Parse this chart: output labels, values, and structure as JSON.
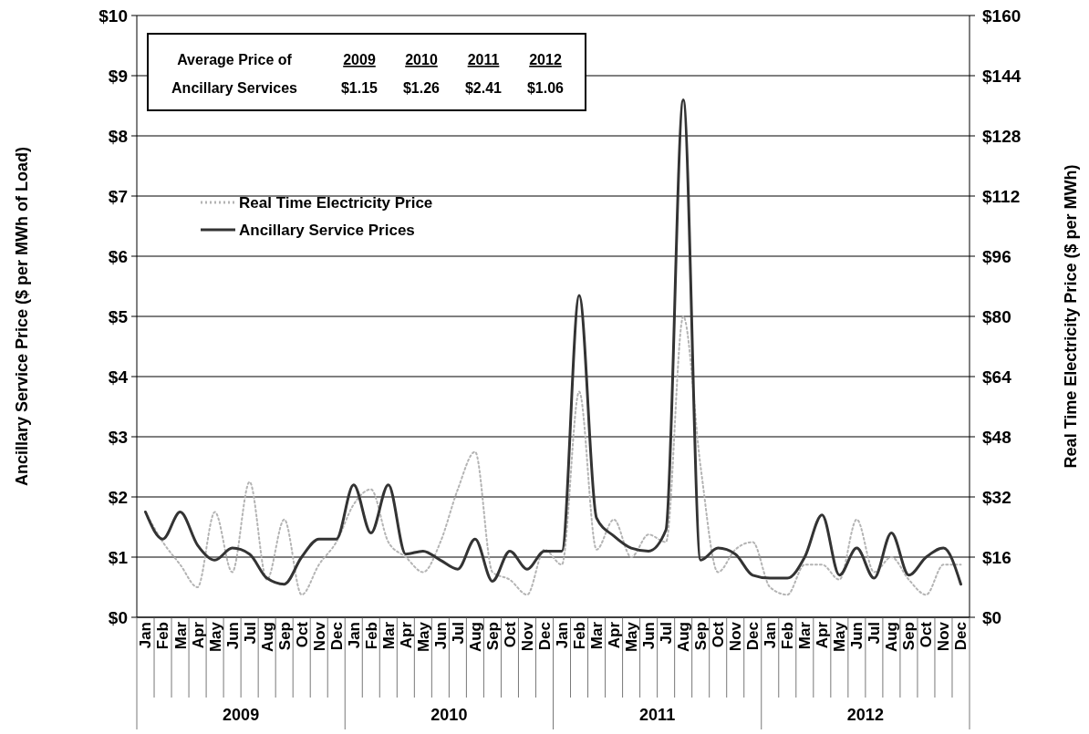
{
  "chart_data": {
    "type": "line",
    "xlabel": null,
    "ylabel": "Ancillary Service Price ($ per MWh of Load)",
    "y2label": "Real Time Electricity Price ($ per MWh)",
    "categories": [
      "Jan",
      "Feb",
      "Mar",
      "Apr",
      "May",
      "Jun",
      "Jul",
      "Aug",
      "Sep",
      "Oct",
      "Nov",
      "Dec",
      "Jan",
      "Feb",
      "Mar",
      "Apr",
      "May",
      "Jun",
      "Jul",
      "Aug",
      "Sep",
      "Oct",
      "Nov",
      "Dec",
      "Jan",
      "Feb",
      "Mar",
      "Apr",
      "May",
      "Jun",
      "Jul",
      "Aug",
      "Sep",
      "Oct",
      "Nov",
      "Dec",
      "Jan",
      "Feb",
      "Mar",
      "Apr",
      "May",
      "Jun",
      "Jul",
      "Aug",
      "Sep",
      "Oct",
      "Nov",
      "Dec"
    ],
    "series": [
      {
        "name": "Real Time Electricity Price",
        "color": "#b4b4b4",
        "axis": "y2",
        "line_style": "dotted",
        "values": [
          28,
          20,
          14,
          8,
          28,
          12,
          36,
          10,
          26,
          6,
          14,
          20,
          30,
          34,
          20,
          16,
          12,
          20,
          34,
          44,
          12,
          10,
          6,
          18,
          14,
          60,
          18,
          26,
          16,
          22,
          20,
          80,
          40,
          12,
          18,
          20,
          8,
          6,
          14,
          14,
          10,
          26,
          12,
          16,
          10,
          6,
          14,
          14
        ]
      },
      {
        "name": "Ancillary Service Prices",
        "color": "#333333",
        "line_style": "solid",
        "values": [
          1.75,
          1.3,
          1.75,
          1.2,
          0.95,
          1.15,
          1.05,
          0.65,
          0.55,
          1.0,
          1.3,
          1.3,
          2.2,
          1.4,
          2.2,
          1.05,
          1.1,
          0.95,
          0.8,
          1.3,
          0.6,
          1.1,
          0.8,
          1.1,
          1.1,
          5.35,
          1.65,
          1.35,
          1.15,
          1.1,
          1.45,
          8.6,
          0.95,
          1.15,
          1.05,
          0.7,
          0.65,
          0.65,
          1.0,
          1.7,
          0.7,
          1.15,
          0.65,
          1.4,
          0.7,
          1.0,
          1.15,
          0.55
        ]
      }
    ],
    "ylim": [
      0,
      10
    ],
    "yticks": [
      {
        "value": 0,
        "label": "$0"
      },
      {
        "value": 1,
        "label": "$1"
      },
      {
        "value": 2,
        "label": "$2"
      },
      {
        "value": 3,
        "label": "$3"
      },
      {
        "value": 4,
        "label": "$4"
      },
      {
        "value": 5,
        "label": "$5"
      },
      {
        "value": 6,
        "label": "$6"
      },
      {
        "value": 7,
        "label": "$7"
      },
      {
        "value": 8,
        "label": "$8"
      },
      {
        "value": 9,
        "label": "$9"
      },
      {
        "value": 10,
        "label": "$10"
      }
    ],
    "y2lim": [
      0,
      160
    ],
    "y2ticks": [
      {
        "value": 0,
        "label": "$0"
      },
      {
        "value": 16,
        "label": "$16"
      },
      {
        "value": 32,
        "label": "$32"
      },
      {
        "value": 48,
        "label": "$48"
      },
      {
        "value": 64,
        "label": "$64"
      },
      {
        "value": 80,
        "label": "$80"
      },
      {
        "value": 96,
        "label": "$96"
      },
      {
        "value": 112,
        "label": "$112"
      },
      {
        "value": 128,
        "label": "$128"
      },
      {
        "value": 144,
        "label": "$144"
      },
      {
        "value": 160,
        "label": "$160"
      }
    ],
    "annotations": [
      "Average Price of",
      "Ancillary Services",
      "2009",
      "2010",
      "2011",
      "2012",
      "$1.15",
      "$1.26",
      "$2.41",
      "$1.06",
      "2009",
      "2010",
      "2011",
      "2012"
    ],
    "grid": "y",
    "legend": "left",
    "marker": "none"
  }
}
